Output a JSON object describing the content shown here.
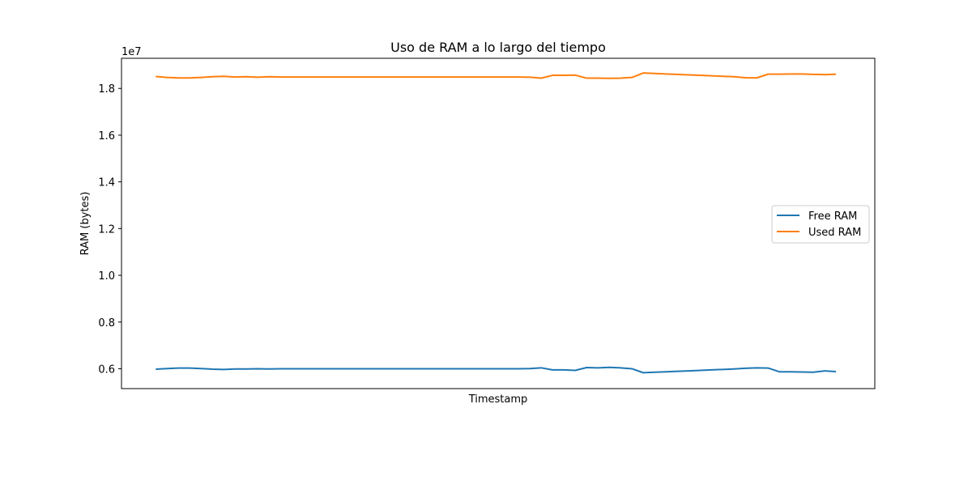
{
  "chart_data": {
    "type": "line",
    "title": "Uso de RAM a lo largo del tiempo",
    "xlabel": "Timestamp",
    "ylabel": "RAM (bytes)",
    "y_offset_label": "1e7",
    "ylim": [
      5150000,
      19290000
    ],
    "xlim": [
      -3.02,
      63.42
    ],
    "y_ticks": [
      6000000,
      8000000,
      10000000,
      12000000,
      14000000,
      16000000,
      18000000
    ],
    "y_tick_labels": [
      "0.6",
      "0.8",
      "1.0",
      "1.2",
      "1.4",
      "1.6",
      "1.8"
    ],
    "grid": false,
    "legend_position": "center-right",
    "x": [
      0,
      1,
      2,
      3,
      4,
      5,
      6,
      7,
      8,
      9,
      10,
      11,
      12,
      13,
      14,
      15,
      16,
      17,
      18,
      19,
      20,
      21,
      22,
      23,
      24,
      25,
      26,
      27,
      28,
      29,
      30,
      31,
      32,
      33,
      34,
      35,
      36,
      37,
      38,
      39,
      40,
      41,
      42,
      43,
      44,
      45,
      46,
      47,
      48,
      49,
      50,
      51,
      52,
      53,
      54,
      55,
      56,
      57,
      58,
      59,
      60
    ],
    "series": [
      {
        "name": "Free RAM",
        "color": "#1f77b4",
        "values": [
          5980000,
          6010000,
          6030000,
          6030000,
          6010000,
          5980000,
          5970000,
          5990000,
          5990000,
          6000000,
          5990000,
          6000000,
          6000000,
          6000000,
          6000000,
          6000000,
          6000000,
          6000000,
          6000000,
          6000000,
          6000000,
          6000000,
          6000000,
          6000000,
          6000000,
          6000000,
          6000000,
          6000000,
          6000000,
          6000000,
          6000000,
          6000000,
          6000000,
          6010000,
          6040000,
          5950000,
          5950000,
          5930000,
          6050000,
          6040000,
          6060000,
          6040000,
          6000000,
          5830000,
          5850000,
          5870000,
          5890000,
          5910000,
          5930000,
          5950000,
          5970000,
          5990000,
          6020000,
          6040000,
          6030000,
          5870000,
          5870000,
          5860000,
          5850000,
          5910000,
          5880000
        ]
      },
      {
        "name": "Used RAM",
        "color": "#ff7f0e",
        "values": [
          18510000,
          18470000,
          18450000,
          18450000,
          18470000,
          18500000,
          18520000,
          18490000,
          18500000,
          18480000,
          18500000,
          18490000,
          18490000,
          18490000,
          18490000,
          18490000,
          18490000,
          18490000,
          18490000,
          18490000,
          18490000,
          18490000,
          18490000,
          18490000,
          18490000,
          18490000,
          18490000,
          18490000,
          18490000,
          18490000,
          18490000,
          18490000,
          18490000,
          18480000,
          18440000,
          18560000,
          18560000,
          18570000,
          18440000,
          18440000,
          18430000,
          18440000,
          18470000,
          18660000,
          18640000,
          18620000,
          18600000,
          18580000,
          18560000,
          18540000,
          18520000,
          18500000,
          18460000,
          18450000,
          18610000,
          18610000,
          18620000,
          18620000,
          18600000,
          18590000,
          18610000
        ]
      }
    ]
  }
}
